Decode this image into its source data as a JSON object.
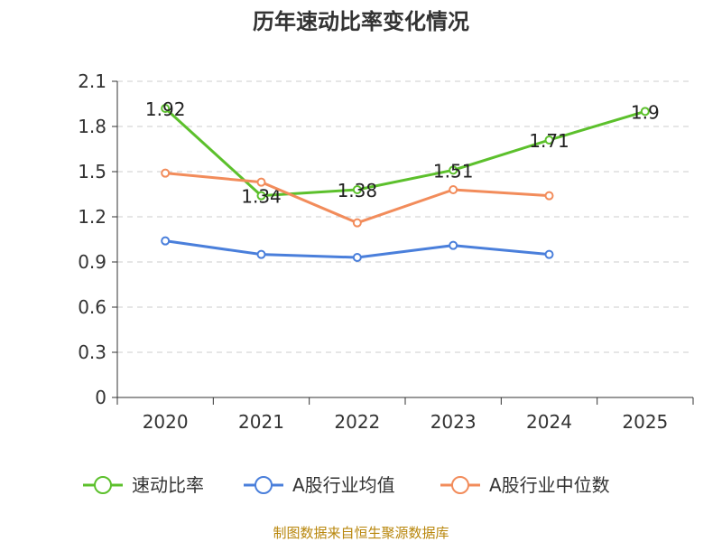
{
  "chart_data": {
    "type": "line",
    "title": "历年速动比率变化情况",
    "categories": [
      "2020",
      "2021",
      "2022",
      "2023",
      "2024",
      "2025"
    ],
    "ylim": [
      0,
      2.1
    ],
    "yticks": [
      "0",
      "0.3",
      "0.6",
      "0.9",
      "1.2",
      "1.5",
      "1.8",
      "2.1"
    ],
    "grid": true,
    "legend_position": "bottom",
    "series": [
      {
        "name": "速动比率",
        "color": "#5cc02c",
        "values": [
          1.92,
          1.34,
          1.38,
          1.51,
          1.71,
          1.9
        ],
        "labels": [
          "1.92",
          "1.34",
          "1.38",
          "1.51",
          "1.71",
          "1.9"
        ],
        "show_labels": true
      },
      {
        "name": "A股行业均值",
        "color": "#4a7fdb",
        "values": [
          1.04,
          0.95,
          0.93,
          1.01,
          0.95,
          null
        ],
        "show_labels": false
      },
      {
        "name": "A股行业中位数",
        "color": "#f28c5b",
        "values": [
          1.49,
          1.43,
          1.16,
          1.38,
          1.34,
          null
        ],
        "show_labels": false
      }
    ],
    "source": "制图数据来自恒生聚源数据库"
  }
}
